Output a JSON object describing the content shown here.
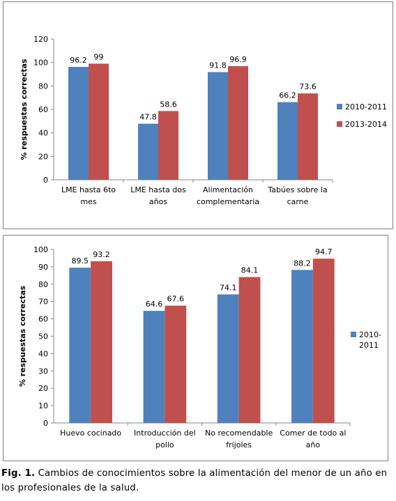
{
  "chart_data": [
    {
      "type": "bar",
      "ylabel": "% respuestas correctas",
      "ylim": [
        0,
        120
      ],
      "yticks": [
        0,
        20,
        40,
        60,
        80,
        100,
        120
      ],
      "categories": [
        [
          "LME hasta 6to",
          "mes"
        ],
        [
          "LME hasta dos",
          "años"
        ],
        [
          "Alimentación",
          "complementaria"
        ],
        [
          "Tabúes sobre la",
          "carne"
        ]
      ],
      "series": [
        {
          "name": "2010-2011",
          "color": "#4f81bd",
          "values": [
            96.2,
            47.8,
            91.8,
            66.2
          ],
          "labels": [
            "96.2",
            "47.8",
            "91.8",
            "66.2"
          ]
        },
        {
          "name": "2013-2014",
          "color": "#c0504d",
          "values": [
            99,
            58.6,
            96.9,
            73.6
          ],
          "labels": [
            "99",
            "58.6",
            "96.9",
            "73.6"
          ]
        }
      ],
      "legend": "right"
    },
    {
      "type": "bar",
      "ylabel": "% respuestas correctas",
      "ylim": [
        0,
        100
      ],
      "yticks": [
        0,
        10,
        20,
        30,
        40,
        50,
        60,
        70,
        80,
        90,
        100
      ],
      "categories": [
        [
          "Huevo cocinado"
        ],
        [
          "Introducción del",
          "pollo"
        ],
        [
          "No recomendable",
          "frijoles"
        ],
        [
          "Comer de todo al",
          "año"
        ]
      ],
      "series": [
        {
          "name": "2010-2011",
          "color": "#4f81bd",
          "values": [
            89.5,
            64.6,
            74.1,
            88.2
          ],
          "labels": [
            "89.5",
            "64.6",
            "74.1",
            "88.2"
          ]
        },
        {
          "name": "",
          "color": "#c0504d",
          "values": [
            93.2,
            67.6,
            84.1,
            94.7
          ],
          "labels": [
            "93.2",
            "67.6",
            "84.1",
            "94.7"
          ]
        }
      ],
      "legend": "right",
      "legend_entries": [
        [
          "2010-",
          "2011"
        ]
      ]
    }
  ],
  "caption": {
    "label": "Fig. 1.",
    "text": " Cambios de conocimientos sobre la alimentación del menor de un año en los profesionales de la salud."
  }
}
